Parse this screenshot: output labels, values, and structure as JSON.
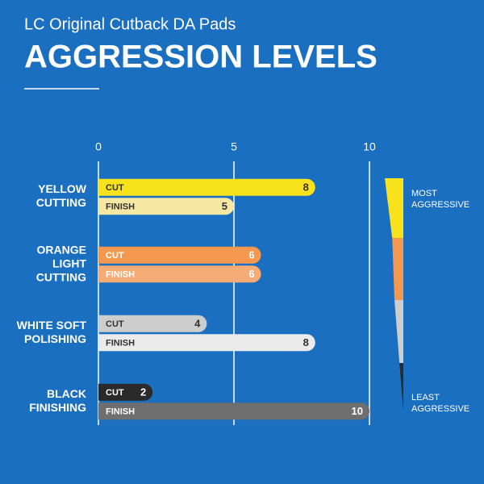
{
  "chart_data": {
    "type": "bar",
    "subtitle": "LC Original Cutback DA Pads",
    "title": "AGGRESSION LEVELS",
    "xlim": [
      0,
      10
    ],
    "xticks": [
      0,
      5,
      10
    ],
    "grid": true,
    "groups": [
      {
        "label": [
          "YELLOW",
          "CUTTING"
        ],
        "bars": [
          {
            "name": "CUT",
            "value": 8,
            "color": "#f8e21c",
            "text_color": "#333333"
          },
          {
            "name": "FINISH",
            "value": 5,
            "color": "#f6e7a2",
            "text_color": "#333333"
          }
        ]
      },
      {
        "label": [
          "ORANGE",
          "LIGHT",
          "CUTTING"
        ],
        "bars": [
          {
            "name": "CUT",
            "value": 6,
            "color": "#f4984f",
            "text_color": "#ffffff"
          },
          {
            "name": "FINISH",
            "value": 6,
            "color": "#f5ab76",
            "text_color": "#ffffff"
          }
        ]
      },
      {
        "label": [
          "WHITE SOFT",
          "POLISHING"
        ],
        "bars": [
          {
            "name": "CUT",
            "value": 4,
            "color": "#cdcdcd",
            "text_color": "#333333"
          },
          {
            "name": "FINISH",
            "value": 8,
            "color": "#ebebeb",
            "text_color": "#333333"
          }
        ]
      },
      {
        "label": [
          "BLACK",
          "FINISHING"
        ],
        "bars": [
          {
            "name": "CUT",
            "value": 2,
            "color": "#2a2a2a",
            "text_color": "#ffffff"
          },
          {
            "name": "FINISH",
            "value": 10,
            "color": "#6f6f6f",
            "text_color": "#ffffff"
          }
        ]
      }
    ],
    "scale_top": [
      "MOST",
      "AGGRESSIVE"
    ],
    "scale_bottom": [
      "LEAST",
      "AGGRESSIVE"
    ]
  }
}
